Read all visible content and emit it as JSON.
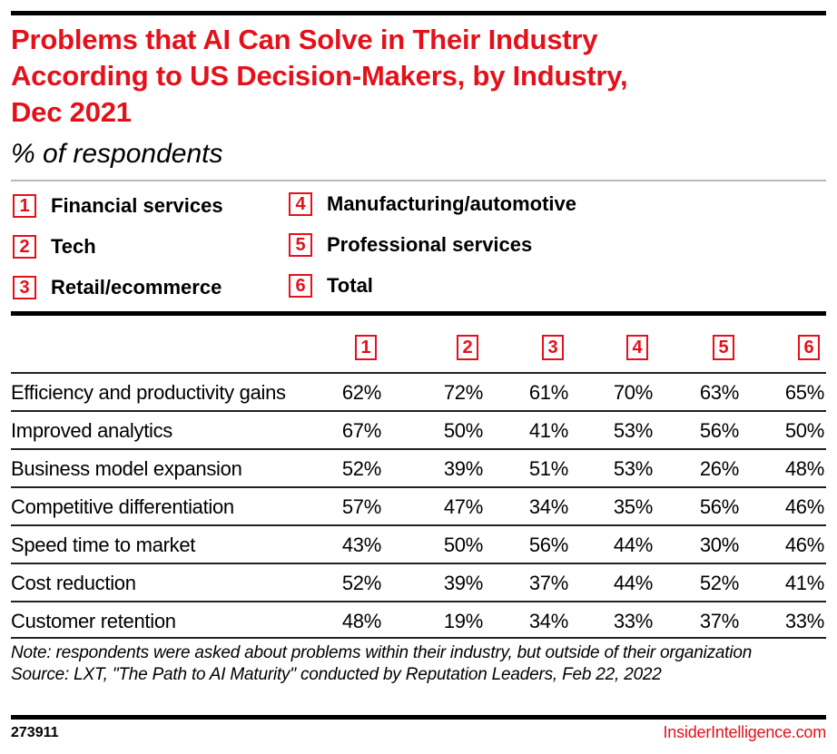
{
  "header": {
    "title_lines": [
      "Problems that AI Can Solve in Their Industry",
      "According to US Decision-Makers, by Industry,",
      "Dec 2021"
    ],
    "subtitle": "% of respondents"
  },
  "legend": [
    {
      "key": "1",
      "label": "Financial services"
    },
    {
      "key": "2",
      "label": "Tech"
    },
    {
      "key": "3",
      "label": "Retail/ecommerce"
    },
    {
      "key": "4",
      "label": "Manufacturing/automotive"
    },
    {
      "key": "5",
      "label": "Professional services"
    },
    {
      "key": "6",
      "label": "Total"
    }
  ],
  "colors": {
    "accent": "#e4111b",
    "text": "#000000",
    "rule": "#222222"
  },
  "chart_data": {
    "type": "table",
    "title": "Problems that AI Can Solve in Their Industry According to US Decision-Makers, by Industry, Dec 2021",
    "subtitle": "% of respondents",
    "columns": [
      "1",
      "2",
      "3",
      "4",
      "5",
      "6"
    ],
    "column_labels": [
      "Financial services",
      "Tech",
      "Retail/ecommerce",
      "Manufacturing/automotive",
      "Professional services",
      "Total"
    ],
    "rows": [
      {
        "label": "Efficiency and productivity gains",
        "values": [
          "62%",
          "72%",
          "61%",
          "70%",
          "63%",
          "65%"
        ]
      },
      {
        "label": "Improved analytics",
        "values": [
          "67%",
          "50%",
          "41%",
          "53%",
          "56%",
          "50%"
        ]
      },
      {
        "label": "Business model expansion",
        "values": [
          "52%",
          "39%",
          "51%",
          "53%",
          "26%",
          "48%"
        ]
      },
      {
        "label": "Competitive differentiation",
        "values": [
          "57%",
          "47%",
          "34%",
          "35%",
          "56%",
          "46%"
        ]
      },
      {
        "label": "Speed time to market",
        "values": [
          "43%",
          "50%",
          "56%",
          "44%",
          "30%",
          "46%"
        ]
      },
      {
        "label": "Cost reduction",
        "values": [
          "52%",
          "39%",
          "37%",
          "44%",
          "52%",
          "41%"
        ]
      },
      {
        "label": "Customer retention",
        "values": [
          "48%",
          "19%",
          "34%",
          "33%",
          "37%",
          "33%"
        ]
      }
    ]
  },
  "footnotes": {
    "note": "Note: respondents were asked about problems within their industry, but outside of their organization",
    "source": "Source: LXT, \"The Path to AI Maturity\" conducted by Reputation Leaders, Feb 22, 2022"
  },
  "footer": {
    "chart_id": "273911",
    "brand": "InsiderIntelligence.com"
  }
}
